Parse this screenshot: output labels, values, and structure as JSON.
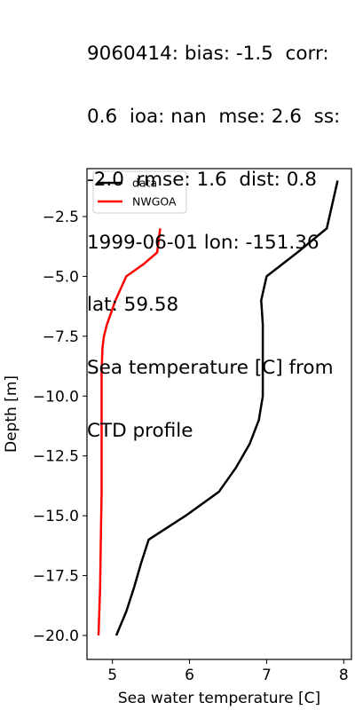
{
  "chart_data": {
    "type": "line",
    "title_lines": [
      "9060414: bias: -1.5  corr:",
      "0.6  ioa: nan  mse: 2.6  ss:",
      "-2.0  rmse: 1.6  dist: 0.8",
      "1999-06-01 lon: -151.36",
      "lat: 59.58",
      "Sea temperature [C] from",
      "CTD profile"
    ],
    "xlabel": "Sea water temperature [C]",
    "ylabel": "Depth [m]",
    "xlim": [
      4.67,
      8.1
    ],
    "ylim": [
      -21.0,
      -0.5
    ],
    "xticks": [
      5,
      6,
      7,
      8
    ],
    "yticks": [
      -2.5,
      -5.0,
      -7.5,
      -10.0,
      -12.5,
      -15.0,
      -17.5,
      -20.0
    ],
    "xtick_labels": [
      "5",
      "6",
      "7",
      "8"
    ],
    "ytick_labels": [
      "−2.5",
      "−5.0",
      "−7.5",
      "−10.0",
      "−12.5",
      "−15.0",
      "−17.5",
      "−20.0"
    ],
    "legend_position": "upper-left",
    "grid": false,
    "series": [
      {
        "name": "data",
        "color": "#000000",
        "points": [
          [
            7.92,
            -1.0
          ],
          [
            7.85,
            -2.0
          ],
          [
            7.78,
            -3.0
          ],
          [
            7.4,
            -4.0
          ],
          [
            7.0,
            -5.0
          ],
          [
            6.93,
            -6.0
          ],
          [
            6.95,
            -7.0
          ],
          [
            6.95,
            -8.0
          ],
          [
            6.95,
            -9.0
          ],
          [
            6.95,
            -10.0
          ],
          [
            6.9,
            -11.0
          ],
          [
            6.78,
            -12.0
          ],
          [
            6.6,
            -13.0
          ],
          [
            6.38,
            -14.0
          ],
          [
            5.95,
            -15.0
          ],
          [
            5.47,
            -16.0
          ],
          [
            5.37,
            -17.0
          ],
          [
            5.28,
            -18.0
          ],
          [
            5.18,
            -19.0
          ],
          [
            5.05,
            -20.0
          ]
        ]
      },
      {
        "name": "NWGOA",
        "color": "#ff0000",
        "points": [
          [
            5.62,
            -3.0
          ],
          [
            5.58,
            -4.0
          ],
          [
            5.4,
            -4.5
          ],
          [
            5.18,
            -5.0
          ],
          [
            5.04,
            -6.0
          ],
          [
            4.93,
            -7.0
          ],
          [
            4.89,
            -7.5
          ],
          [
            4.87,
            -8.0
          ],
          [
            4.86,
            -9.0
          ],
          [
            4.86,
            -10.0
          ],
          [
            4.86,
            -12.0
          ],
          [
            4.86,
            -14.0
          ],
          [
            4.85,
            -16.0
          ],
          [
            4.84,
            -18.0
          ],
          [
            4.82,
            -20.0
          ]
        ]
      }
    ]
  }
}
